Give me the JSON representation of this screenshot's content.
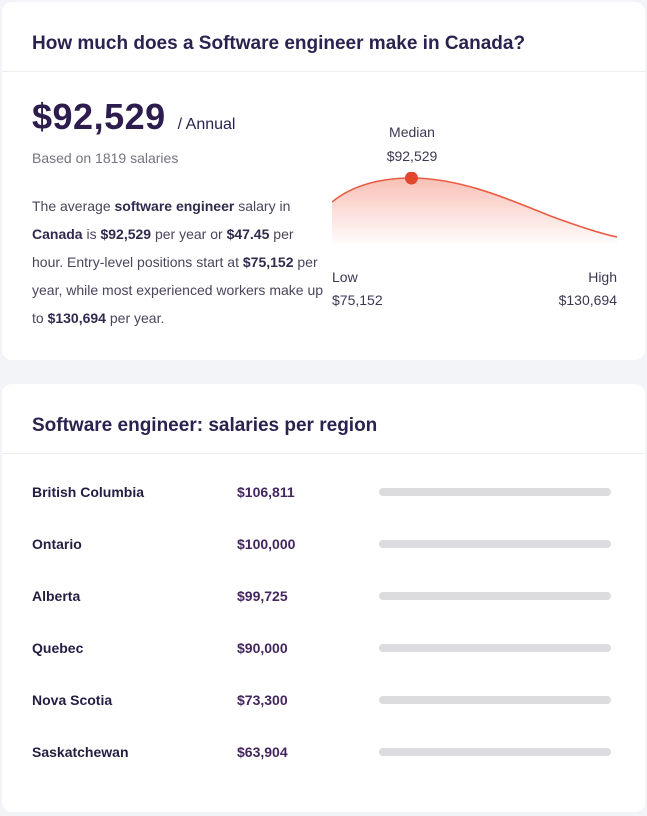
{
  "colors": {
    "page_background": "#f3f4f7",
    "card_background": "#ffffff",
    "heading_text": "#2b2250",
    "muted_text": "#76737f",
    "body_text": "#4b445c",
    "salary_value_text": "#44265e",
    "curve_red": "#e95c44",
    "curve_dot_red": "#e2472e",
    "bar_teal": "#4fc9b1",
    "bar_track_gray": "#dcdcdf"
  },
  "card_salary": {
    "title": "How much does a Software engineer make in Canada?",
    "amount": "$92,529",
    "period": "/ Annual",
    "basis": "Based on 1819 salaries",
    "paragraph": [
      {
        "text": "The average ",
        "bold": false
      },
      {
        "text": "software engineer",
        "bold": true
      },
      {
        "text": " salary in ",
        "bold": false
      },
      {
        "text": "Canada",
        "bold": true
      },
      {
        "text": " is ",
        "bold": false
      },
      {
        "text": "$92,529",
        "bold": true
      },
      {
        "text": " per year or ",
        "bold": false
      },
      {
        "text": "$47.45",
        "bold": true
      },
      {
        "text": " per hour. Entry-level positions start at ",
        "bold": false
      },
      {
        "text": "$75,152",
        "bold": true
      },
      {
        "text": " per year, while most experienced workers make up to ",
        "bold": false
      },
      {
        "text": "$130,694",
        "bold": true
      },
      {
        "text": " per year.",
        "bold": false
      }
    ],
    "distribution": {
      "median_label": "Median",
      "median_value": "$92,529",
      "low_label": "Low",
      "low_value": "$75,152",
      "high_label": "High",
      "high_value": "$130,694"
    }
  },
  "card_regions": {
    "title": "Software engineer: salaries per region",
    "rows": [
      {
        "name": "British Columbia",
        "value": "$106,811",
        "amount": 106811
      },
      {
        "name": "Ontario",
        "value": "$100,000",
        "amount": 100000
      },
      {
        "name": "Alberta",
        "value": "$99,725",
        "amount": 99725
      },
      {
        "name": "Quebec",
        "value": "$90,000",
        "amount": 90000
      },
      {
        "name": "Nova Scotia",
        "value": "$73,300",
        "amount": 73300
      },
      {
        "name": "Saskatchewan",
        "value": "$63,904",
        "amount": 63904
      }
    ]
  },
  "chart_data": [
    {
      "type": "area",
      "title": "Software engineer salary distribution in Canada (Annual)",
      "points": [
        {
          "label": "Low",
          "value": 75152
        },
        {
          "label": "Median",
          "value": 92529
        },
        {
          "label": "High",
          "value": 130694
        }
      ],
      "annotations": [
        "Median $92,529",
        "Low $75,152",
        "High $130,694"
      ],
      "legend_position": "none",
      "grid": false
    },
    {
      "type": "bar",
      "orientation": "horizontal",
      "title": "Software engineer: salaries per region",
      "categories": [
        "British Columbia",
        "Ontario",
        "Alberta",
        "Quebec",
        "Nova Scotia",
        "Saskatchewan"
      ],
      "values": [
        106811,
        100000,
        99725,
        90000,
        73300,
        63904
      ],
      "value_labels": [
        "$106,811",
        "$100,000",
        "$99,725",
        "$90,000",
        "$73,300",
        "$63,904"
      ],
      "xlabel": "",
      "ylabel": "",
      "xlim": [
        0,
        106811
      ],
      "grid": false,
      "legend_position": "none"
    }
  ]
}
